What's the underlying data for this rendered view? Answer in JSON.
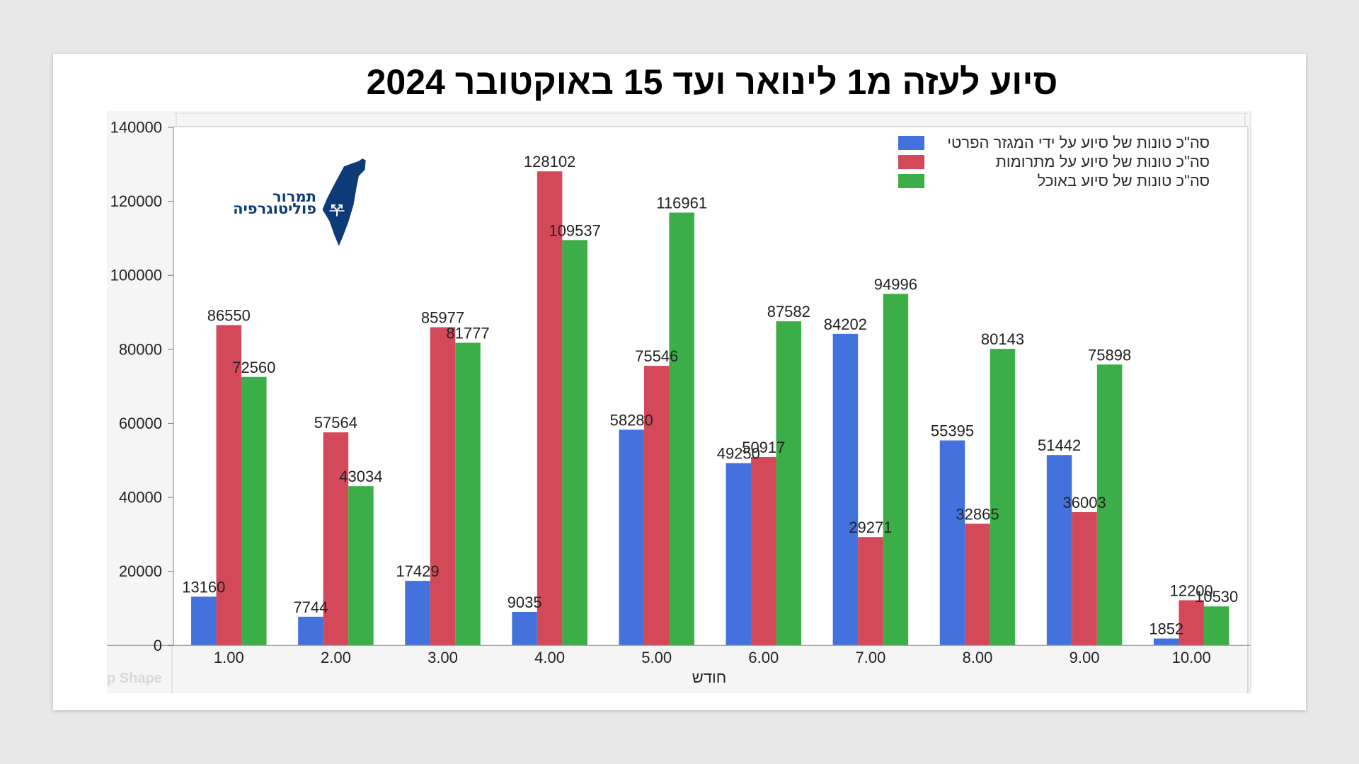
{
  "logo": {
    "line1": "תמרור",
    "line2": "פוליטוגרפיה",
    "color": "#0f3a78"
  },
  "drop_zone_label": "p Shape",
  "chart_data": {
    "type": "bar",
    "title": "סיוע לעזה מ1 לינואר ועד 15 באוקטובר 2024",
    "xlabel": "חודש",
    "categories": [
      "1.00",
      "2.00",
      "3.00",
      "4.00",
      "5.00",
      "6.00",
      "7.00",
      "8.00",
      "9.00",
      "10.00"
    ],
    "ylim": [
      0,
      140000
    ],
    "y_ticks": [
      0,
      20000,
      40000,
      60000,
      80000,
      100000,
      120000,
      140000
    ],
    "grid": false,
    "legend_position": "top-right",
    "data_labels": true,
    "series": [
      {
        "name": "סה\"כ טונות של סיוע על ידי המגזר הפרטי",
        "color": "#4472dd",
        "values": [
          13160,
          7744,
          17429,
          9035,
          58280,
          49250,
          84202,
          55395,
          51442,
          1852
        ]
      },
      {
        "name": "סה\"כ טונות של סיוע על מתרומות",
        "color": "#d4495a",
        "values": [
          86550,
          57564,
          85977,
          128102,
          75546,
          50917,
          29271,
          32865,
          36003,
          12200
        ]
      },
      {
        "name": "סה\"כ טונות של סיוע באוכל",
        "color": "#3cae47",
        "values": [
          72560,
          43034,
          81777,
          109537,
          116961,
          87582,
          94996,
          80143,
          75898,
          10530
        ]
      }
    ]
  }
}
